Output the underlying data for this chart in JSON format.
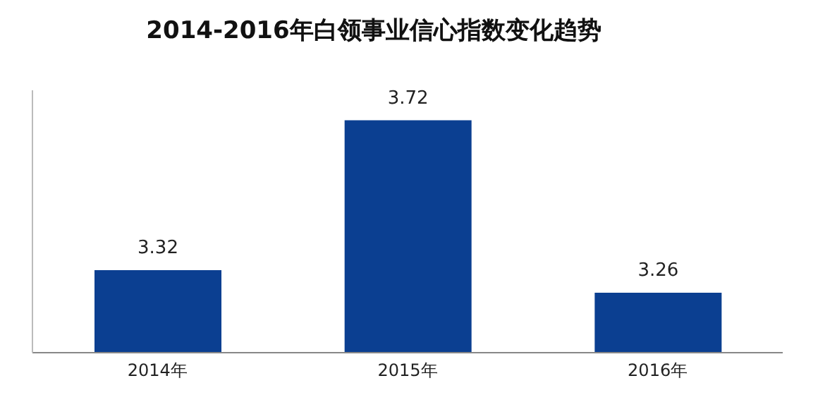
{
  "chart_data": {
    "type": "bar",
    "title": "2014-2016年白领事业信心指数变化趋势",
    "categories": [
      "2014年",
      "2015年",
      "2016年"
    ],
    "values": [
      3.32,
      3.72,
      3.26
    ],
    "color": "#0b3f91",
    "ylim": [
      3.1,
      3.8
    ],
    "data_labels": true,
    "tick_labels": "x"
  }
}
